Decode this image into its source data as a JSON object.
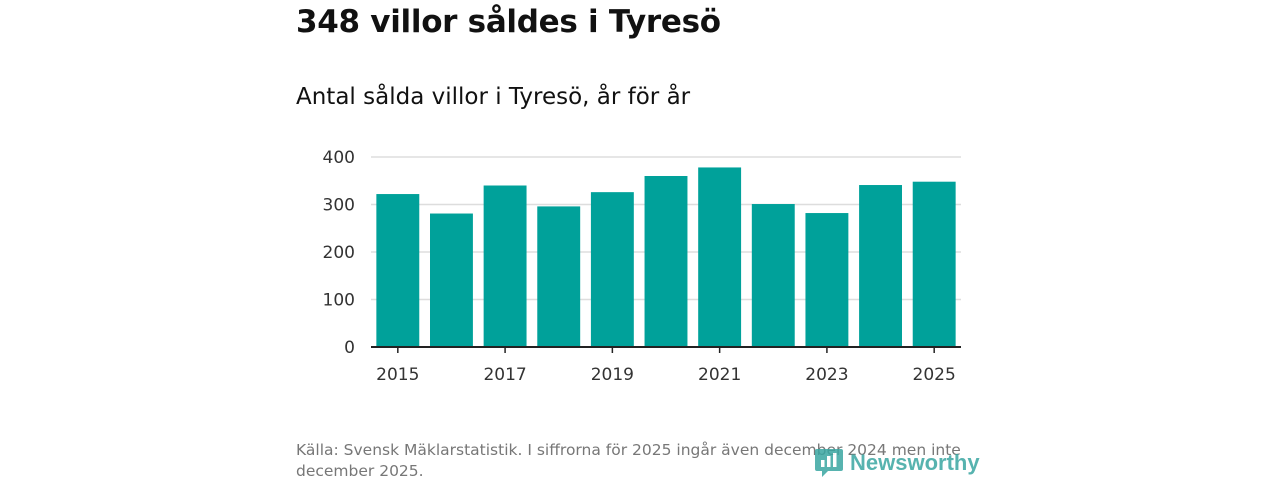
{
  "header": {
    "title": "348 villor såldes i Tyresö",
    "subtitle": "Antal sålda villor i Tyresö, år för år"
  },
  "chart_data": {
    "type": "bar",
    "title": "Antal sålda villor i Tyresö, år för år",
    "xlabel": "",
    "ylabel": "",
    "categories": [
      "2015",
      "2016",
      "2017",
      "2018",
      "2019",
      "2020",
      "2021",
      "2022",
      "2023",
      "2024",
      "2025"
    ],
    "values": [
      322,
      281,
      340,
      296,
      326,
      360,
      378,
      301,
      282,
      341,
      348
    ],
    "ylim": [
      0,
      400
    ],
    "yticks": [
      0,
      100,
      200,
      300,
      400
    ],
    "xtick_labels": [
      "2015",
      "2017",
      "2019",
      "2021",
      "2023",
      "2025"
    ],
    "grid": true,
    "bar_color": "#00a19a"
  },
  "footer": {
    "source": "Källa: Svensk Mäklarstatistik. I siffrorna för 2025 ingår även december 2024 men inte december 2025.",
    "brand": "Newsworthy"
  }
}
